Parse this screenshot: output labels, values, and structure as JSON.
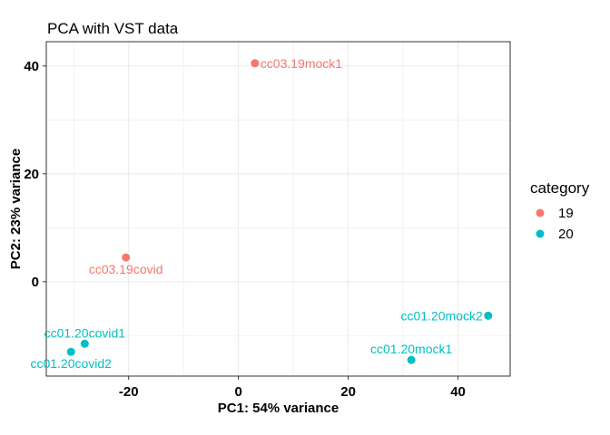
{
  "chart_data": {
    "type": "scatter",
    "title": "PCA with VST data",
    "xlabel": "PC1: 54% variance",
    "ylabel": "PC2: 23% variance",
    "xlim": [
      -35,
      49.5
    ],
    "ylim": [
      -17.5,
      44.5
    ],
    "xticks": [
      -20,
      0,
      20,
      40
    ],
    "yticks": [
      0,
      20,
      40
    ],
    "grid": true,
    "legend": {
      "title": "category",
      "placement": "right",
      "entries": [
        {
          "label": "19",
          "color": "#F8766D"
        },
        {
          "label": "20",
          "color": "#00BFC4"
        }
      ]
    },
    "points": [
      {
        "label": "cc03.19mock1",
        "x": 3.0,
        "y": 40.5,
        "category": "19",
        "label_side": "right"
      },
      {
        "label": "cc03.19covid",
        "x": -20.5,
        "y": 4.5,
        "category": "19",
        "label_side": "below"
      },
      {
        "label": "cc01.20mock2",
        "x": 45.5,
        "y": -6.3,
        "category": "20",
        "label_side": "left"
      },
      {
        "label": "cc01.20mock1",
        "x": 31.5,
        "y": -14.5,
        "category": "20",
        "label_side": "above"
      },
      {
        "label": "cc01.20covid1",
        "x": -28.0,
        "y": -11.5,
        "category": "20",
        "label_side": "above"
      },
      {
        "label": "cc01.20covid2",
        "x": -30.5,
        "y": -13.0,
        "category": "20",
        "label_side": "below"
      }
    ]
  }
}
